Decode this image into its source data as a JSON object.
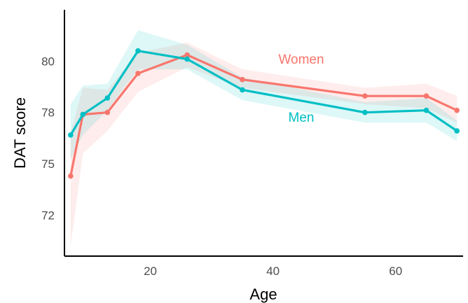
{
  "chart_data": {
    "type": "line",
    "title": "",
    "xlabel": "Age",
    "ylabel": "DAT score",
    "xlim": [
      6,
      71
    ],
    "ylim": [
      70.5,
      82.5
    ],
    "xticks": [
      20,
      40,
      60
    ],
    "yticks": [
      72.5,
      75,
      77.5,
      80
    ],
    "ytick_labels": [
      "72",
      "75",
      "78",
      "80"
    ],
    "grid": false,
    "legend": "none (series labeled directly on plot)",
    "series": [
      {
        "name": "Women",
        "color": "#F8766D",
        "x": [
          7,
          9,
          13,
          18,
          26,
          35,
          55,
          65,
          70
        ],
        "y": [
          74.4,
          77.4,
          77.5,
          79.4,
          80.3,
          79.1,
          78.3,
          78.3,
          77.6
        ],
        "lower": [
          71.0,
          75.5,
          76.6,
          78.5,
          79.7,
          78.7,
          77.9,
          77.7,
          77.0
        ],
        "upper": [
          76.5,
          78.7,
          78.6,
          80.4,
          80.9,
          79.6,
          78.7,
          78.9,
          78.3
        ]
      },
      {
        "name": "Men",
        "color": "#00BFC4",
        "x": [
          7,
          9,
          13,
          18,
          26,
          35,
          55,
          65,
          70
        ],
        "y": [
          76.4,
          77.4,
          78.2,
          80.5,
          80.1,
          78.6,
          77.5,
          77.6,
          76.6
        ],
        "lower": [
          75.2,
          76.4,
          77.6,
          79.6,
          79.6,
          78.1,
          77.0,
          77.0,
          76.1
        ],
        "upper": [
          77.9,
          78.8,
          78.9,
          81.5,
          80.8,
          79.2,
          78.0,
          78.2,
          77.1
        ]
      }
    ]
  }
}
